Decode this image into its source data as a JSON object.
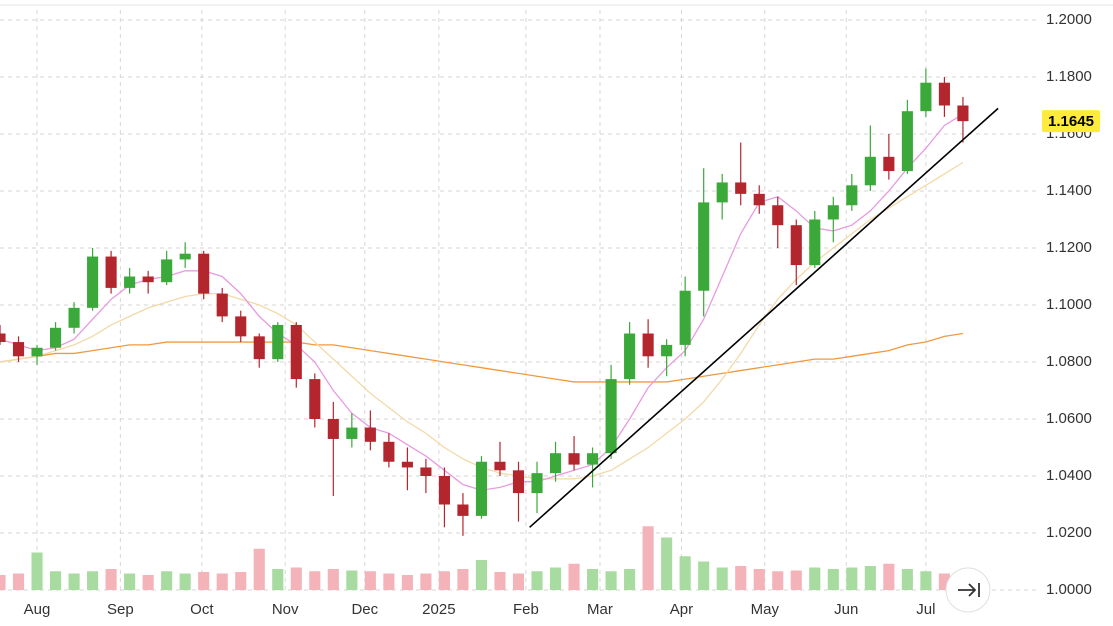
{
  "chart_data": {
    "type": "candlestick",
    "x": [
      -2,
      -1,
      0,
      1,
      2,
      3,
      4,
      5,
      6,
      7,
      8,
      9,
      10,
      11,
      12,
      13,
      14,
      15,
      16,
      17,
      18,
      19,
      20,
      21,
      22,
      23,
      24,
      25,
      26,
      27,
      28,
      29,
      30,
      31,
      32,
      33,
      34,
      35,
      36,
      37,
      38,
      39,
      40,
      41,
      42,
      43,
      44,
      45,
      46,
      47,
      48,
      49,
      50
    ],
    "open": [
      1.09,
      1.087,
      1.082,
      1.085,
      1.092,
      1.099,
      1.117,
      1.106,
      1.11,
      1.108,
      1.116,
      1.118,
      1.104,
      1.096,
      1.089,
      1.081,
      1.093,
      1.074,
      1.06,
      1.053,
      1.057,
      1.052,
      1.045,
      1.043,
      1.04,
      1.03,
      1.026,
      1.045,
      1.042,
      1.034,
      1.041,
      1.048,
      1.044,
      1.048,
      1.074,
      1.09,
      1.082,
      1.086,
      1.105,
      1.136,
      1.143,
      1.139,
      1.135,
      1.128,
      1.114,
      1.13,
      1.135,
      1.142,
      1.152,
      1.147,
      1.168,
      1.178,
      1.17
    ],
    "high": [
      1.093,
      1.089,
      1.086,
      1.094,
      1.101,
      1.12,
      1.119,
      1.113,
      1.112,
      1.119,
      1.122,
      1.119,
      1.106,
      1.098,
      1.09,
      1.094,
      1.094,
      1.076,
      1.066,
      1.062,
      1.063,
      1.055,
      1.05,
      1.046,
      1.043,
      1.034,
      1.047,
      1.052,
      1.045,
      1.045,
      1.052,
      1.054,
      1.05,
      1.079,
      1.094,
      1.095,
      1.088,
      1.11,
      1.148,
      1.146,
      1.157,
      1.142,
      1.138,
      1.13,
      1.133,
      1.138,
      1.146,
      1.163,
      1.16,
      1.172,
      1.183,
      1.18,
      1.173
    ],
    "low": [
      1.086,
      1.08,
      1.079,
      1.084,
      1.09,
      1.098,
      1.104,
      1.104,
      1.104,
      1.107,
      1.113,
      1.102,
      1.094,
      1.087,
      1.078,
      1.08,
      1.071,
      1.057,
      1.033,
      1.05,
      1.049,
      1.043,
      1.035,
      1.034,
      1.022,
      1.019,
      1.025,
      1.04,
      1.024,
      1.027,
      1.038,
      1.042,
      1.036,
      1.046,
      1.072,
      1.078,
      1.075,
      1.082,
      1.096,
      1.13,
      1.135,
      1.132,
      1.12,
      1.107,
      1.113,
      1.122,
      1.133,
      1.14,
      1.144,
      1.146,
      1.166,
      1.166,
      1.157
    ],
    "close": [
      1.087,
      1.082,
      1.085,
      1.092,
      1.099,
      1.117,
      1.106,
      1.11,
      1.108,
      1.116,
      1.118,
      1.104,
      1.096,
      1.089,
      1.081,
      1.093,
      1.074,
      1.06,
      1.053,
      1.057,
      1.052,
      1.045,
      1.043,
      1.04,
      1.03,
      1.026,
      1.045,
      1.042,
      1.034,
      1.041,
      1.048,
      1.044,
      1.048,
      1.074,
      1.09,
      1.082,
      1.086,
      1.105,
      1.136,
      1.143,
      1.139,
      1.135,
      1.128,
      1.114,
      1.13,
      1.135,
      1.142,
      1.152,
      1.147,
      1.168,
      1.178,
      1.17,
      1.1645
    ],
    "up_color": "#3aa93a",
    "down_color": "#b3262d",
    "volume": [
      20,
      22,
      50,
      25,
      22,
      25,
      28,
      22,
      20,
      25,
      22,
      24,
      22,
      24,
      55,
      28,
      30,
      25,
      28,
      26,
      25,
      22,
      20,
      22,
      25,
      28,
      40,
      24,
      22,
      25,
      30,
      35,
      28,
      25,
      28,
      85,
      70,
      45,
      38,
      30,
      32,
      28,
      25,
      26,
      30,
      28,
      30,
      32,
      35,
      28,
      25,
      22,
      26
    ],
    "volume_up_color": "#a8dba0",
    "volume_down_color": "#f4b3b8",
    "lines": [
      {
        "color": "#f09a3e",
        "values": [
          1.08,
          1.081,
          1.082,
          1.083,
          1.083,
          1.084,
          1.085,
          1.086,
          1.086,
          1.087,
          1.087,
          1.087,
          1.087,
          1.087,
          1.087,
          1.087,
          1.087,
          1.086,
          1.086,
          1.085,
          1.084,
          1.083,
          1.082,
          1.081,
          1.08,
          1.079,
          1.078,
          1.077,
          1.076,
          1.075,
          1.074,
          1.073,
          1.073,
          1.073,
          1.073,
          1.073,
          1.073,
          1.074,
          1.075,
          1.076,
          1.077,
          1.078,
          1.079,
          1.08,
          1.081,
          1.081,
          1.082,
          1.083,
          1.084,
          1.086,
          1.087,
          1.089,
          1.09
        ]
      },
      {
        "color": "#f3d9a8",
        "values": [
          1.08,
          1.081,
          1.082,
          1.084,
          1.086,
          1.089,
          1.093,
          1.096,
          1.099,
          1.101,
          1.103,
          1.104,
          1.104,
          1.102,
          1.1,
          1.097,
          1.093,
          1.087,
          1.081,
          1.075,
          1.069,
          1.064,
          1.059,
          1.055,
          1.05,
          1.046,
          1.043,
          1.041,
          1.04,
          1.039,
          1.039,
          1.039,
          1.04,
          1.042,
          1.046,
          1.05,
          1.055,
          1.06,
          1.066,
          1.074,
          1.083,
          1.093,
          1.102,
          1.109,
          1.115,
          1.12,
          1.125,
          1.13,
          1.134,
          1.138,
          1.142,
          1.146,
          1.15
        ]
      },
      {
        "color": "#e79be0",
        "values": [
          1.088,
          1.086,
          1.084,
          1.085,
          1.088,
          1.095,
          1.102,
          1.107,
          1.109,
          1.11,
          1.112,
          1.112,
          1.11,
          1.104,
          1.096,
          1.09,
          1.086,
          1.08,
          1.07,
          1.062,
          1.057,
          1.055,
          1.051,
          1.047,
          1.042,
          1.037,
          1.035,
          1.036,
          1.038,
          1.038,
          1.04,
          1.042,
          1.044,
          1.05,
          1.06,
          1.071,
          1.078,
          1.084,
          1.095,
          1.11,
          1.125,
          1.136,
          1.138,
          1.133,
          1.127,
          1.126,
          1.128,
          1.133,
          1.14,
          1.148,
          1.155,
          1.163,
          1.167
        ]
      }
    ],
    "trendline": {
      "color": "#000000",
      "x": [
        26.6,
        51.9
      ],
      "y": [
        1.022,
        1.169
      ]
    },
    "last_price": 1.1645,
    "last_price_color": "#ffeb3b",
    "xlim": [
      -2,
      54
    ],
    "xticks": [
      {
        "value": 0,
        "label": "Aug"
      },
      {
        "value": 4.5,
        "label": "Sep"
      },
      {
        "value": 8.9,
        "label": "Oct"
      },
      {
        "value": 13.4,
        "label": "Nov"
      },
      {
        "value": 17.7,
        "label": "Dec"
      },
      {
        "value": 21.7,
        "label": "2025"
      },
      {
        "value": 26.4,
        "label": "Feb"
      },
      {
        "value": 30.4,
        "label": "Mar"
      },
      {
        "value": 34.8,
        "label": "Apr"
      },
      {
        "value": 39.3,
        "label": "May"
      },
      {
        "value": 43.7,
        "label": "Jun"
      },
      {
        "value": 48,
        "label": "Jul"
      }
    ],
    "ylim": [
      1.0,
      1.2
    ],
    "yticks": [
      {
        "value": 1.0,
        "label": "1.0000"
      },
      {
        "value": 1.02,
        "label": "1.0200"
      },
      {
        "value": 1.04,
        "label": "1.0400"
      },
      {
        "value": 1.06,
        "label": "1.0600"
      },
      {
        "value": 1.08,
        "label": "1.0800"
      },
      {
        "value": 1.1,
        "label": "1.1000"
      },
      {
        "value": 1.12,
        "label": "1.1200"
      },
      {
        "value": 1.14,
        "label": "1.1400"
      },
      {
        "value": 1.16,
        "label": "1.1600"
      },
      {
        "value": 1.18,
        "label": "1.1800"
      },
      {
        "value": 1.2,
        "label": "1.2000"
      }
    ],
    "grid": true
  }
}
